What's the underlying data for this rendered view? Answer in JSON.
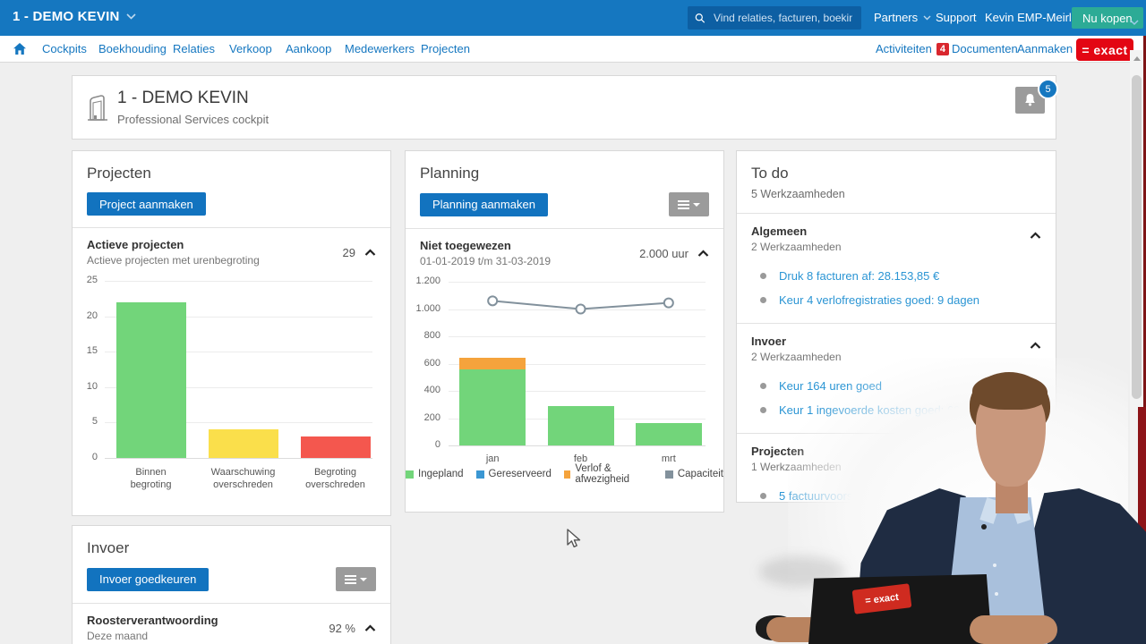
{
  "topbar": {
    "company": "1 - DEMO KEVIN",
    "search_placeholder": "Vind relaties, facturen, boekin...",
    "partners": "Partners",
    "support": "Support",
    "user": "Kevin EMP-Meirlaen",
    "buy_now": "Nu kopen"
  },
  "nav": {
    "items": [
      "Cockpits",
      "Boekhouding",
      "Relaties",
      "Verkoop",
      "Aankoop",
      "Medewerkers",
      "Projecten"
    ],
    "activiteiten": "Activiteiten",
    "activiteiten_badge": "4",
    "documenten": "Documenten",
    "aanmaken": "Aanmaken",
    "logo": "= exact"
  },
  "header": {
    "title": "1 - DEMO KEVIN",
    "subtitle": "Professional Services cockpit",
    "notifications_badge": "5"
  },
  "projecten_card": {
    "title": "Projecten",
    "button": "Project aanmaken",
    "widget_title": "Actieve projecten",
    "widget_subtitle": "Actieve projecten met urenbegroting",
    "widget_value": "29"
  },
  "planning_card": {
    "title": "Planning",
    "button": "Planning aanmaken",
    "widget_title": "Niet toegewezen",
    "widget_subtitle": "01-01-2019 t/m 31-03-2019",
    "widget_value": "2.000 uur"
  },
  "todo_card": {
    "title": "To do",
    "subtitle": "5 Werkzaamheden",
    "sections": [
      {
        "title": "Algemeen",
        "subtitle": "2 Werkzaamheden",
        "items": [
          "Druk 8 facturen af: 28.153,85 €",
          "Keur 4 verlofregistraties goed: 9 dagen"
        ]
      },
      {
        "title": "Invoer",
        "subtitle": "2 Werkzaamheden",
        "items": [
          "Keur 164 uren goed",
          "Keur 1 ingevoerde kosten goed: 69,00 €"
        ]
      },
      {
        "title": "Projecten",
        "subtitle": "1 Werkzaamheden",
        "items": [
          "5 factuurvoorstel(len) bekijken: 1.490,00 €"
        ]
      }
    ]
  },
  "invoer_card": {
    "title": "Invoer",
    "button": "Invoer goedkeuren",
    "widget_title": "Roosterverantwoording",
    "widget_subtitle": "Deze maand",
    "widget_value": "92 %"
  },
  "chart_data": [
    {
      "type": "bar",
      "title": "Actieve projecten",
      "categories": [
        "Binnen\nbegroting",
        "Waarschuwing\noverschreden",
        "Begroting\noverschreden"
      ],
      "values": [
        22,
        4,
        3
      ],
      "colors": [
        "#72d57a",
        "#fadf4b",
        "#f4574e"
      ],
      "ylabel": "",
      "xlabel": "",
      "ylim": [
        0,
        25
      ],
      "yticks": [
        0,
        5,
        10,
        15,
        20,
        25
      ],
      "grid": true,
      "legend_position": "none"
    },
    {
      "type": "bar+line",
      "title": "Niet toegewezen 01-01-2019 t/m 31-03-2019",
      "categories": [
        "jan",
        "feb",
        "mrt"
      ],
      "series": [
        {
          "name": "Ingepland",
          "render": "bar",
          "values": [
            560,
            290,
            165
          ],
          "color": "#72d57a"
        },
        {
          "name": "Gereserveerd",
          "render": "bar",
          "values": [
            0,
            0,
            0
          ],
          "color": "#3b97d3"
        },
        {
          "name": "Verlof & afwezigheid",
          "render": "bar",
          "values": [
            85,
            0,
            0
          ],
          "color": "#f5a33c"
        },
        {
          "name": "Capaciteit",
          "render": "line",
          "values": [
            1060,
            1000,
            1045
          ],
          "color": "#82919c"
        }
      ],
      "ylabel": "",
      "xlabel": "",
      "ylim": [
        0,
        1200
      ],
      "ytick_values": [
        0,
        200,
        400,
        600,
        800,
        1000,
        1200
      ],
      "ytick_labels": [
        "0",
        "200",
        "400",
        "600",
        "800",
        "1.000",
        "1.200"
      ],
      "grid": true,
      "legend_position": "bottom"
    }
  ],
  "colors": {
    "topbar": "#1577c0",
    "search_bg": "#0d5fa3",
    "buy_button": "#2cab96",
    "logo_red": "#e30613",
    "badge_red": "#d9272e",
    "link_blue": "#2b95d4",
    "action_blue": "#1273bf",
    "gray_button": "#9b9b9b",
    "bar_green": "#72d57a",
    "bar_yellow": "#fadf4b",
    "bar_red": "#f4574e",
    "bar_orange": "#f5a33c",
    "line_gray": "#82919c"
  },
  "icons": {
    "search": "magnifier-icon",
    "notifications": "bell-icon",
    "company": "building-icon",
    "home": "home-icon",
    "menu": "hamburger-icon"
  }
}
